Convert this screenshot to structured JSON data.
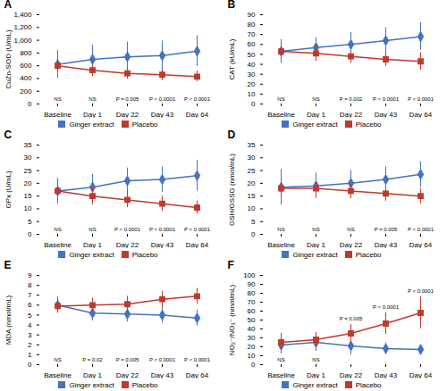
{
  "chart_data": [
    {
      "type": "line",
      "title": "A",
      "ylabel": "CuZn-SOD (U/mL)",
      "categories": [
        "Baseline",
        "Day 1",
        "Day 22",
        "Day 43",
        "Day 64"
      ],
      "ylim": [
        0,
        1400
      ],
      "yticks": [
        0,
        200,
        400,
        600,
        800,
        1000,
        1200,
        1400
      ],
      "grid": false,
      "legend": "bottom",
      "series": [
        {
          "name": "Ginger extract",
          "color": "#4472C4",
          "marker": "diamond",
          "values": [
            620,
            700,
            740,
            760,
            830
          ],
          "errors": [
            220,
            220,
            230,
            230,
            240
          ]
        },
        {
          "name": "Placebo",
          "color": "#C0392B",
          "marker": "square",
          "values": [
            600,
            530,
            480,
            460,
            430
          ],
          "errors": [
            110,
            100,
            90,
            90,
            85
          ]
        }
      ],
      "annotations": [
        {
          "text": "NS",
          "category": "Baseline",
          "position": "bottom"
        },
        {
          "text": "NS",
          "category": "Day 1",
          "position": "bottom"
        },
        {
          "text": "P = 0.005",
          "category": "Day 22",
          "position": "bottom"
        },
        {
          "text": "P < 0.0001",
          "category": "Day 43",
          "position": "bottom"
        },
        {
          "text": "P < 0.0001",
          "category": "Day 64",
          "position": "bottom"
        }
      ]
    },
    {
      "type": "line",
      "title": "B",
      "ylabel": "CAT (kU/mL)",
      "categories": [
        "Baseline",
        "Day 1",
        "Day 22",
        "Day 43",
        "Day 64"
      ],
      "ylim": [
        0,
        90
      ],
      "yticks": [
        0,
        10,
        20,
        30,
        40,
        50,
        60,
        70,
        80,
        90
      ],
      "grid": false,
      "legend": "bottom",
      "series": [
        {
          "name": "Ginger extract",
          "color": "#4472C4",
          "marker": "diamond",
          "values": [
            53,
            57,
            60,
            64,
            68
          ],
          "errors": [
            12,
            10,
            12,
            13,
            14
          ]
        },
        {
          "name": "Placebo",
          "color": "#C0392B",
          "marker": "square",
          "values": [
            53,
            51,
            48,
            45,
            43
          ],
          "errors": [
            8,
            8,
            7,
            7,
            9
          ]
        }
      ],
      "annotations": [
        {
          "text": "NS",
          "category": "Baseline",
          "position": "bottom"
        },
        {
          "text": "NS",
          "category": "Day 1",
          "position": "bottom"
        },
        {
          "text": "P = 0.002",
          "category": "Day 22",
          "position": "bottom"
        },
        {
          "text": "P < 0.0001",
          "category": "Day 43",
          "position": "bottom"
        },
        {
          "text": "P < 0.0001",
          "category": "Day 64",
          "position": "bottom"
        }
      ]
    },
    {
      "type": "line",
      "title": "C",
      "ylabel": "GPx (U/mL)",
      "categories": [
        "Baseline",
        "Day 1",
        "Day 22",
        "Day 43",
        "Day 64"
      ],
      "ylim": [
        0,
        35
      ],
      "yticks": [
        0,
        5,
        10,
        15,
        20,
        25,
        30,
        35
      ],
      "grid": false,
      "legend": "bottom",
      "series": [
        {
          "name": "Ginger extract",
          "color": "#4472C4",
          "marker": "diamond",
          "values": [
            17,
            18.5,
            21,
            21.5,
            23
          ],
          "errors": [
            5,
            5,
            5,
            5,
            6
          ]
        },
        {
          "name": "Placebo",
          "color": "#C0392B",
          "marker": "square",
          "values": [
            17,
            15,
            13.5,
            12,
            10.5
          ],
          "errors": [
            3.5,
            3.5,
            3,
            3,
            2.5
          ]
        }
      ],
      "annotations": [
        {
          "text": "NS",
          "category": "Baseline",
          "position": "bottom"
        },
        {
          "text": "NS",
          "category": "Day 1",
          "position": "bottom"
        },
        {
          "text": "P < 0.0001",
          "category": "Day 22",
          "position": "bottom"
        },
        {
          "text": "P < 0.0001",
          "category": "Day 43",
          "position": "bottom"
        },
        {
          "text": "P < 0.0001",
          "category": "Day 64",
          "position": "bottom"
        }
      ]
    },
    {
      "type": "line",
      "title": "D",
      "ylabel": "GSH/GSSG (nmol/mL)",
      "categories": [
        "Baseline",
        "Day 1",
        "Day 22",
        "Day 43",
        "Day 64"
      ],
      "ylim": [
        0,
        35
      ],
      "yticks": [
        0,
        5,
        10,
        15,
        20,
        25,
        30,
        35
      ],
      "grid": false,
      "legend": "bottom",
      "series": [
        {
          "name": "Ginger extract",
          "color": "#4472C4",
          "marker": "diamond",
          "values": [
            18.5,
            19,
            20,
            21.5,
            23.5
          ],
          "errors": [
            7,
            5,
            5,
            5,
            5
          ]
        },
        {
          "name": "Placebo",
          "color": "#C0392B",
          "marker": "square",
          "values": [
            18,
            18,
            17,
            16,
            15
          ],
          "errors": [
            3,
            3,
            3,
            3,
            3
          ]
        }
      ],
      "annotations": [
        {
          "text": "NS",
          "category": "Baseline",
          "position": "bottom"
        },
        {
          "text": "NS",
          "category": "Day 1",
          "position": "bottom"
        },
        {
          "text": "NS",
          "category": "Day 22",
          "position": "bottom"
        },
        {
          "text": "P = 0.005",
          "category": "Day 43",
          "position": "bottom"
        },
        {
          "text": "P < 0.0001",
          "category": "Day 64",
          "position": "bottom"
        }
      ]
    },
    {
      "type": "line",
      "title": "E",
      "ylabel": "MDA (nmol/mL)",
      "categories": [
        "Baseline",
        "Day 1",
        "Day 22",
        "Day 43",
        "Day 64"
      ],
      "ylim": [
        0,
        9
      ],
      "yticks": [
        0,
        1,
        2,
        3,
        4,
        5,
        6,
        7,
        8,
        9
      ],
      "grid": false,
      "legend": "bottom",
      "series": [
        {
          "name": "Ginger extract",
          "color": "#4472C4",
          "marker": "diamond",
          "values": [
            6.0,
            5.2,
            5.1,
            5.0,
            4.7
          ],
          "errors": [
            0.8,
            0.8,
            0.8,
            0.8,
            0.8
          ]
        },
        {
          "name": "Placebo",
          "color": "#C0392B",
          "marker": "square",
          "values": [
            5.9,
            6.0,
            6.1,
            6.6,
            6.9
          ],
          "errors": [
            0.7,
            0.7,
            0.8,
            0.8,
            0.8
          ]
        }
      ],
      "annotations": [
        {
          "text": "NS",
          "category": "Baseline",
          "position": "bottom"
        },
        {
          "text": "P = 0.02",
          "category": "Day 1",
          "position": "bottom"
        },
        {
          "text": "P = 0.005",
          "category": "Day 22",
          "position": "bottom"
        },
        {
          "text": "P < 0.0001",
          "category": "Day 43",
          "position": "bottom"
        },
        {
          "text": "P < 0.0001",
          "category": "Day 64",
          "position": "bottom"
        }
      ]
    },
    {
      "type": "line",
      "title": "F",
      "ylabel": "NO₂⁻/NO₃⁻ (nmol/mL)",
      "categories": [
        "Baseline",
        "Day 1",
        "Day 22",
        "Day 43",
        "Day 64"
      ],
      "ylim": [
        0,
        100
      ],
      "yticks": [
        0,
        10,
        20,
        30,
        40,
        50,
        60,
        70,
        80,
        90,
        100
      ],
      "grid": false,
      "legend": "bottom",
      "series": [
        {
          "name": "Ginger extract",
          "color": "#4472C4",
          "marker": "diamond",
          "values": [
            22,
            25,
            21,
            18,
            17
          ],
          "errors": [
            10,
            10,
            10,
            6,
            5
          ]
        },
        {
          "name": "Placebo",
          "color": "#C0392B",
          "marker": "square",
          "values": [
            25,
            28,
            35,
            46,
            58
          ],
          "errors": [
            10,
            8,
            10,
            12,
            18
          ]
        }
      ],
      "annotations": [
        {
          "text": "NS",
          "category": "Baseline",
          "position": "bottom"
        },
        {
          "text": "NS",
          "category": "Day 1",
          "position": "bottom"
        },
        {
          "text": "P = 0.005",
          "category": "Day 22",
          "position": "top"
        },
        {
          "text": "P < 0.0001",
          "category": "Day 43",
          "position": "top"
        },
        {
          "text": "P < 0.0001",
          "category": "Day 64",
          "position": "top"
        }
      ]
    }
  ]
}
